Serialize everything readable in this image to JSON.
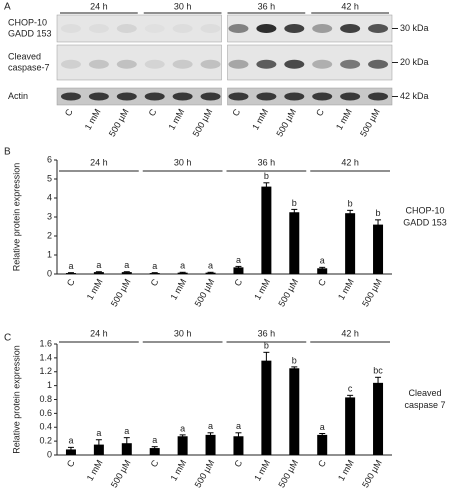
{
  "panel_a": {
    "label": "A",
    "times": [
      "24 h",
      "30 h",
      "36 h",
      "42 h"
    ],
    "rows": [
      [
        "CHOP-10",
        "GADD 153"
      ],
      [
        "Cleaved",
        "caspase-7"
      ],
      [
        "Actin"
      ]
    ],
    "markers": [
      "30 kDa",
      "20 kDa",
      "42 kDa"
    ],
    "lanes": [
      "C",
      "1 mM",
      "500 µM",
      "C",
      "1 mM",
      "500 µM",
      "C",
      "1 mM",
      "500 µM",
      "C",
      "1 mM",
      "500 µM"
    ]
  },
  "chart_data": [
    {
      "type": "bar",
      "panel": "B",
      "ylabel": "Relative protein expression",
      "side_label": [
        "CHOP-10",
        "GADD 153"
      ],
      "groups": [
        "24 h",
        "30 h",
        "36 h",
        "42 h"
      ],
      "categories": [
        "C",
        "1 mM",
        "500 µM",
        "C",
        "1 mM",
        "500 µM",
        "C",
        "1 mM",
        "500 µM",
        "C",
        "1 mM",
        "500 µM"
      ],
      "values": [
        0.05,
        0.1,
        0.1,
        0.05,
        0.07,
        0.07,
        0.35,
        4.6,
        3.25,
        0.3,
        3.2,
        2.6
      ],
      "errors": [
        0.02,
        0.02,
        0.02,
        0.02,
        0.02,
        0.02,
        0.05,
        0.2,
        0.15,
        0.05,
        0.15,
        0.25
      ],
      "letters": [
        "a",
        "a",
        "a",
        "a",
        "a",
        "a",
        "a",
        "b",
        "b",
        "a",
        "b",
        "b"
      ],
      "color": "#000000",
      "ylim": [
        0,
        6
      ],
      "yticks": [
        0,
        1,
        2,
        3,
        4,
        5,
        6
      ]
    },
    {
      "type": "bar",
      "panel": "C",
      "ylabel": "Relative protein expression",
      "side_label": [
        "Cleaved",
        "caspase 7"
      ],
      "groups": [
        "24 h",
        "30 h",
        "36 h",
        "42 h"
      ],
      "categories": [
        "C",
        "1 mM",
        "500 µM",
        "C",
        "1 mM",
        "500 µM",
        "C",
        "1 mM",
        "500 µM",
        "C",
        "1 mM",
        "500 µM"
      ],
      "values": [
        0.08,
        0.15,
        0.17,
        0.1,
        0.27,
        0.29,
        0.27,
        1.36,
        1.25,
        0.29,
        0.83,
        1.04
      ],
      "errors": [
        0.03,
        0.07,
        0.08,
        0.02,
        0.02,
        0.03,
        0.05,
        0.12,
        0.02,
        0.02,
        0.03,
        0.08
      ],
      "letters": [
        "a",
        "a",
        "a",
        "a",
        "a",
        "a",
        "a",
        "b",
        "b",
        "a",
        "c",
        "bc"
      ],
      "color": "#000000",
      "ylim": [
        0,
        1.6
      ],
      "yticks": [
        0,
        0.2,
        0.4,
        0.6,
        0.8,
        1,
        1.2,
        1.4,
        1.6
      ]
    }
  ]
}
